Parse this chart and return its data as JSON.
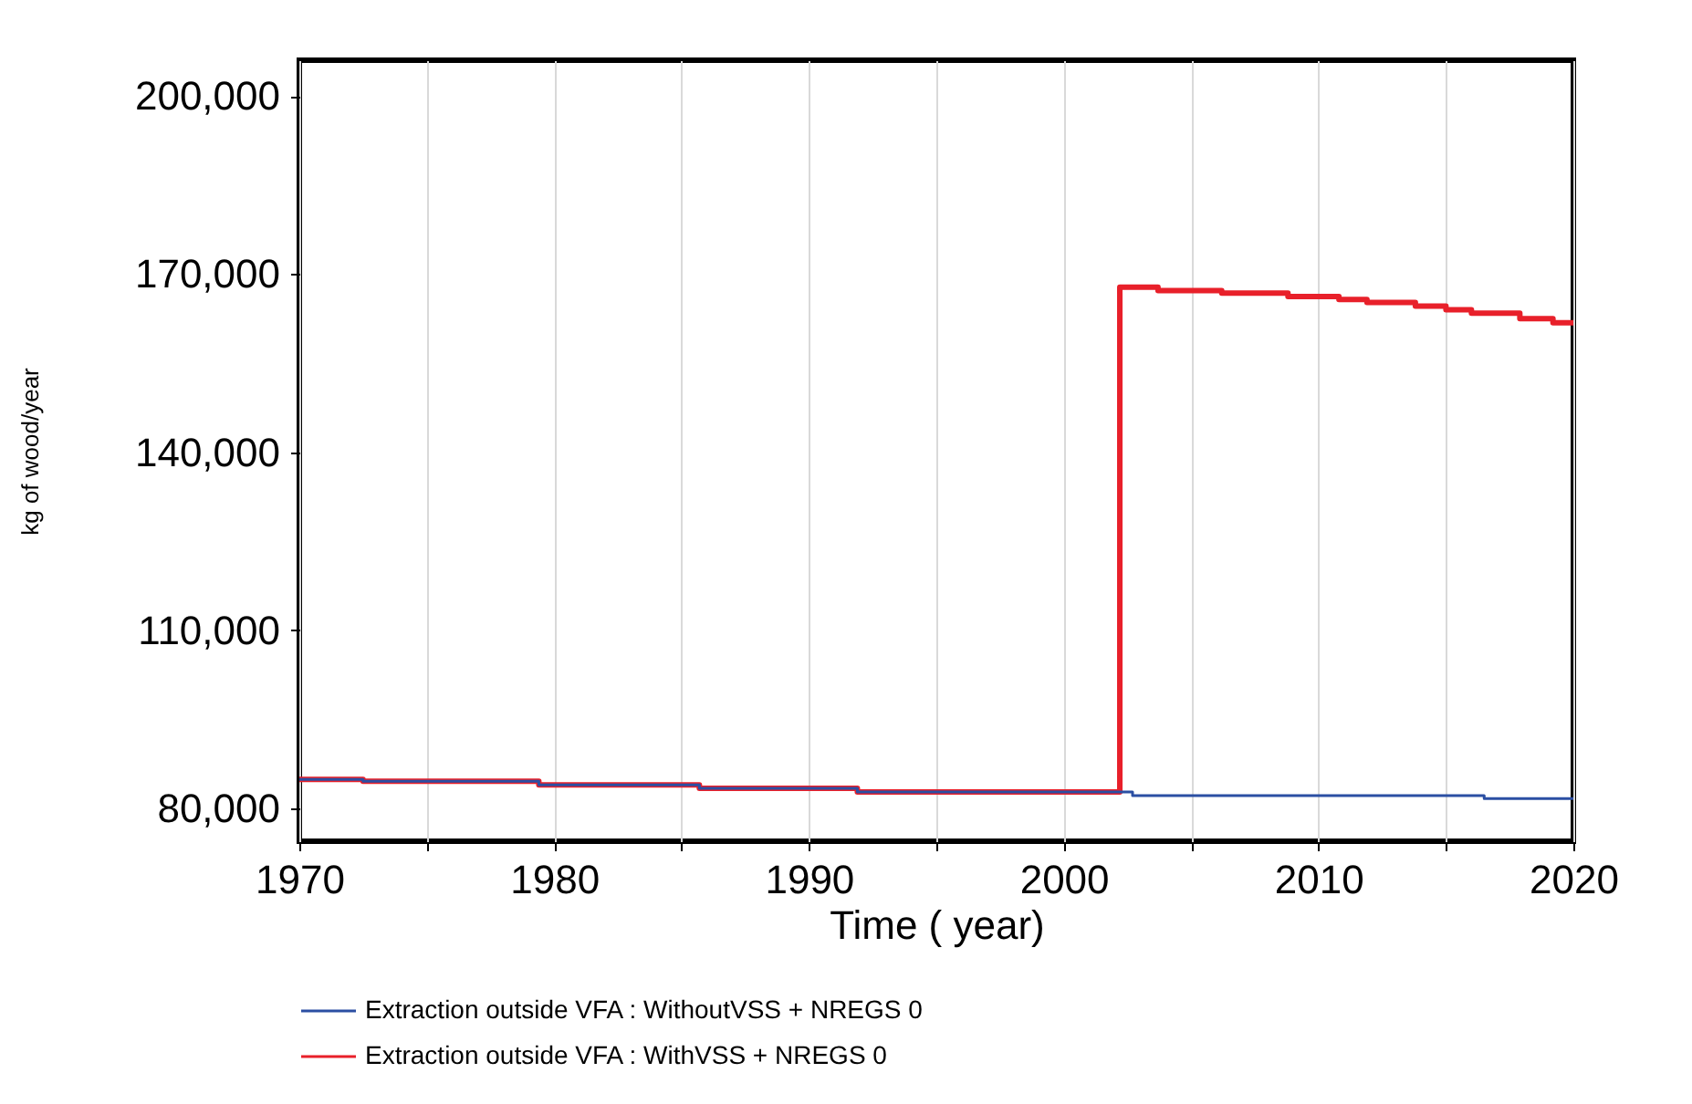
{
  "chart_data": {
    "type": "step",
    "xlabel": "Time (  year)",
    "ylabel": "kg of wood/year",
    "xlim": [
      1970,
      2020
    ],
    "ylim": [
      74500,
      206000
    ],
    "xticks": [
      1970,
      {
        "value": 1975,
        "label": null
      },
      1980,
      {
        "value": 1985,
        "label": null
      },
      1990,
      {
        "value": 1995,
        "label": null
      },
      2000,
      {
        "value": 2005,
        "label": null
      },
      2010,
      {
        "value": 2015,
        "label": null
      },
      2020
    ],
    "yticks": [
      {
        "value": 80000,
        "label": "80,000"
      },
      {
        "value": 110000,
        "label": "110,000"
      },
      {
        "value": 140000,
        "label": "140,000"
      },
      {
        "value": 170000,
        "label": "170,000"
      },
      {
        "value": 200000,
        "label": "200,000"
      }
    ],
    "grid": "x",
    "legend": "bottom",
    "line_style": "solid",
    "series": [
      {
        "name": "Extraction outside VFA : WithoutVSS + NREGS 0",
        "color": "#2b4fa3",
        "x": [
          1970,
          1972.5,
          1979.4,
          1985.7,
          1991.9,
          2002.7,
          2016.5,
          2020
        ],
        "values": [
          84900,
          84600,
          84000,
          83400,
          82800,
          82200,
          81700,
          81700
        ]
      },
      {
        "name": "Extraction outside VFA : WithVSS + NREGS 0",
        "color": "#e8202a",
        "x": [
          1970,
          1972.5,
          1979.4,
          1985.7,
          1991.9,
          2002.2,
          2003.7,
          2006.2,
          2008.8,
          2010.8,
          2011.9,
          2013.8,
          2015,
          2016,
          2017.9,
          2019.2,
          2020
        ],
        "values": [
          84900,
          84600,
          84000,
          83400,
          82800,
          167800,
          167200,
          166800,
          166200,
          165700,
          165200,
          164600,
          164000,
          163400,
          162500,
          161800,
          161800
        ]
      }
    ]
  }
}
